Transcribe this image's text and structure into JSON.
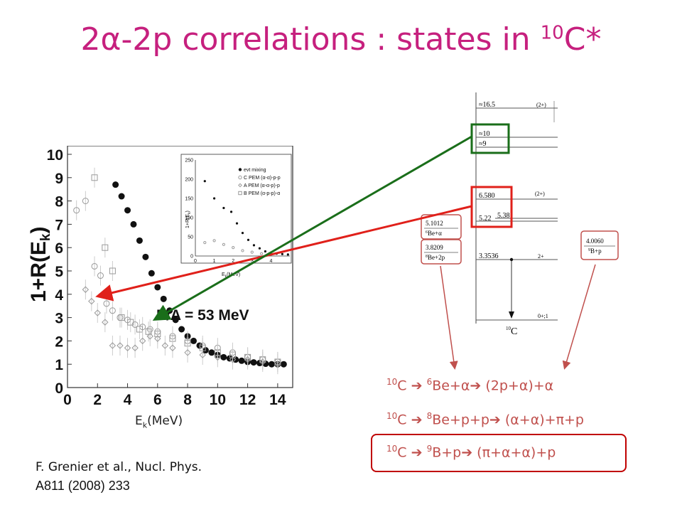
{
  "slide": {
    "title_main": "2α-2p correlations : states in ",
    "title_sup": "10",
    "title_end": "C*"
  },
  "plot": {
    "ylabel_prefix": "1+R(E",
    "ylabel_sub": "k",
    "ylabel_suffix": ")",
    "xlabel_prefix": "E",
    "xlabel_sub": "k",
    "xlabel_suffix": "(MeV)",
    "annotation": "E/A = 53 MeV",
    "xticks": [
      "0",
      "2",
      "4",
      "6",
      "8",
      "10",
      "12",
      "14"
    ],
    "yticks": [
      "0",
      "1",
      "2",
      "3",
      "4",
      "5",
      "6",
      "7",
      "8",
      "9",
      "10"
    ]
  },
  "inset": {
    "ylabel": "1+R(E",
    "ylabel_sub": "k",
    "xlabel": "E",
    "xlabel_sub": "k",
    "xlabel_unit": "(MeV)",
    "yticks": [
      "0",
      "50",
      "100",
      "150",
      "200",
      "250"
    ],
    "xticks": [
      "0",
      "1",
      "2",
      "3",
      "4"
    ],
    "legend": [
      "evt mixing",
      "C PEM (α-α)-p-p",
      "A PEM (α-α-p)-p",
      "B PEM (α-p-p)-α"
    ]
  },
  "chart_data": {
    "type": "scatter",
    "title": "",
    "xlabel": "Ek(MeV)",
    "ylabel": "1+R(Ek)",
    "xlim": [
      0,
      15
    ],
    "ylim": [
      0,
      10
    ],
    "annotation": "E/A = 53 MeV",
    "grid": false,
    "series": [
      {
        "name": "evt mixing",
        "marker": "filled-circle",
        "x": [
          3.2,
          3.6,
          4.0,
          4.4,
          4.8,
          5.2,
          5.6,
          6.0,
          6.4,
          6.8,
          7.2,
          7.6,
          8.0,
          8.4,
          8.8,
          9.2,
          9.6,
          10.0,
          10.4,
          10.8,
          11.2,
          11.6,
          12.0,
          12.4,
          12.8,
          13.2,
          13.6,
          14.0,
          14.4
        ],
        "y": [
          8.7,
          8.2,
          7.6,
          7.0,
          6.3,
          5.6,
          4.9,
          4.3,
          3.8,
          3.3,
          2.9,
          2.5,
          2.2,
          2.0,
          1.8,
          1.6,
          1.5,
          1.4,
          1.3,
          1.25,
          1.2,
          1.15,
          1.1,
          1.08,
          1.05,
          1.02,
          1.0,
          1.0,
          1.0
        ]
      },
      {
        "name": "C PEM (α-α)-p-p",
        "marker": "open-circle",
        "x": [
          0.6,
          1.2,
          1.8,
          2.2,
          2.6,
          3.0,
          3.5,
          4.0,
          4.5,
          5.0,
          5.5,
          6.0,
          7.0,
          8.0,
          9.0,
          10.0,
          11.0,
          12.0,
          13.0,
          14.0
        ],
        "y": [
          7.6,
          8.0,
          5.2,
          4.8,
          3.6,
          3.3,
          3.0,
          2.9,
          2.7,
          2.6,
          2.5,
          2.4,
          2.2,
          2.0,
          1.8,
          1.7,
          1.5,
          1.3,
          1.2,
          1.1
        ]
      },
      {
        "name": "A PEM (α-α-p)-p",
        "marker": "open-square",
        "x": [
          1.8,
          2.5,
          3.0,
          3.6,
          4.2,
          4.8,
          5.4,
          6.0,
          7.0,
          8.0,
          9.0,
          10.0,
          11.0,
          12.0,
          13.0,
          14.0
        ],
        "y": [
          9.0,
          6.0,
          5.0,
          3.0,
          2.8,
          2.5,
          2.4,
          2.3,
          2.1,
          1.9,
          1.7,
          1.5,
          1.4,
          1.3,
          1.2,
          1.1
        ]
      },
      {
        "name": "B PEM (α-p-p)-α",
        "marker": "open-diamond",
        "x": [
          1.2,
          1.6,
          2.0,
          2.5,
          3.0,
          3.5,
          4.0,
          4.5,
          5.0,
          5.5,
          6.0,
          6.5,
          7.0,
          8.0,
          9.0,
          10.0,
          11.0,
          12.0,
          13.0,
          14.0
        ],
        "y": [
          4.2,
          3.7,
          3.2,
          2.8,
          1.8,
          1.8,
          1.7,
          1.7,
          2.0,
          2.2,
          2.1,
          1.8,
          1.7,
          1.5,
          1.4,
          1.3,
          1.2,
          1.2,
          1.1,
          1.0
        ]
      }
    ]
  },
  "levels": {
    "states": [
      "≈16.5",
      "≈10",
      "≈9",
      "6.580",
      "5.22",
      "5.38",
      "3.3536"
    ],
    "spins": [
      "(2+)",
      "(2+)",
      "2+",
      "0+;1"
    ],
    "nucleus_sup": "10",
    "nucleus": "C",
    "thresholds": [
      {
        "value": "5.1012",
        "channel_sup": "6",
        "channel": "Be+α"
      },
      {
        "value": "3.8209",
        "channel_sup": "8",
        "channel": "Be+2p"
      },
      {
        "value": "4.0060",
        "channel_sup": "9",
        "channel": "B+p"
      }
    ]
  },
  "reactions": [
    {
      "sup1": "10",
      "a": "C ",
      "arrow1": "➔",
      "sup2": "6",
      "b": "Be+α",
      "arrow2": "➔",
      "c": " (2p+α)+α"
    },
    {
      "sup1": "10",
      "a": "C ",
      "arrow1": "➔",
      "sup2": "8",
      "b": "Be+p+p",
      "arrow2": "➔",
      "c": " (α+α)+π+p"
    },
    {
      "sup1": "10",
      "a": "C ",
      "arrow1": "➔",
      "sup2": "9",
      "b": "B+p",
      "arrow2": "➔",
      "c": " (π+α+α)+p"
    }
  ],
  "reference": {
    "line1": "F. Grenier et al., Nucl. Phys.",
    "line2": "A811 (2008) 233"
  },
  "colors": {
    "title": "#c6207e",
    "red_arrow": "#e0201a",
    "green_arrow": "#1a6e1a",
    "reaction_text": "#c0504d",
    "highlight_box": "#c00000"
  }
}
